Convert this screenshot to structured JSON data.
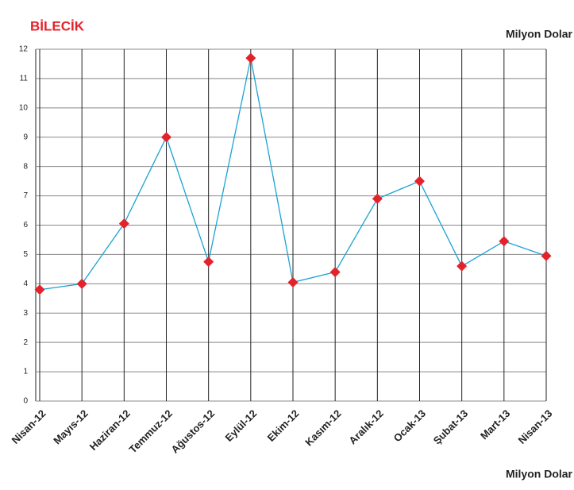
{
  "chart_data": {
    "type": "line",
    "title": "BİLECİK",
    "y_label": "Milyon Dolar",
    "x_label": "Milyon Dolar",
    "categories": [
      "Nisan-12",
      "Mayıs-12",
      "Haziran-12",
      "Temmuz-12",
      "Ağustos-12",
      "Eylül-12",
      "Ekim-12",
      "Kasım-12",
      "Aralık-12",
      "Ocak-13",
      "Şubat-13",
      "Mart-13",
      "Nisan-13"
    ],
    "series": [
      {
        "name": "BİLECİK",
        "color": "#1aa3d4",
        "marker_color": "#e3232c",
        "values": [
          3.8,
          4.0,
          6.05,
          9.0,
          4.75,
          11.7,
          4.05,
          4.4,
          6.9,
          7.5,
          4.6,
          5.45,
          4.95
        ]
      }
    ],
    "ylim": [
      0,
      12
    ],
    "yticks": [
      0,
      1,
      2,
      3,
      4,
      5,
      6,
      7,
      8,
      9,
      10,
      11,
      12
    ],
    "grid": true
  }
}
